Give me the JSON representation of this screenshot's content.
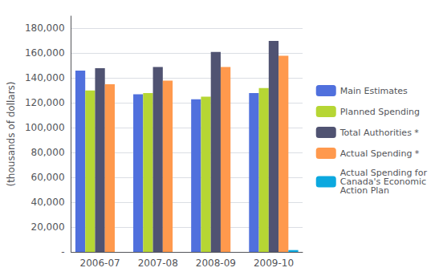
{
  "chart_data": {
    "type": "bar",
    "categories": [
      "2006-07",
      "2007-08",
      "2008-09",
      "2009-10"
    ],
    "series": [
      {
        "name": "Main Estimates",
        "values": [
          146000,
          127000,
          123000,
          128000
        ]
      },
      {
        "name": "Planned Spending",
        "values": [
          130000,
          128000,
          125000,
          132000
        ]
      },
      {
        "name": "Total Authorities *",
        "values": [
          148000,
          149000,
          161000,
          170000
        ]
      },
      {
        "name": "Actual Spending *",
        "values": [
          135000,
          138000,
          149000,
          158000
        ]
      },
      {
        "name": "Actual Spending for\nCanada's Economic\nAction Plan",
        "values": [
          0,
          0,
          0,
          1500
        ]
      }
    ],
    "ylabel": "(thousands of dollars)",
    "ylim": [
      0,
      190000
    ],
    "yticks": [
      {
        "value": 0,
        "label": "-"
      },
      {
        "value": 20000,
        "label": "20,000"
      },
      {
        "value": 40000,
        "label": "40,000"
      },
      {
        "value": 60000,
        "label": "60,000"
      },
      {
        "value": 80000,
        "label": "80,000"
      },
      {
        "value": 100000,
        "label": "100,000"
      },
      {
        "value": 120000,
        "label": "120,000"
      },
      {
        "value": 140000,
        "label": "140,000"
      },
      {
        "value": 160000,
        "label": "160,000"
      },
      {
        "value": 180000,
        "label": "180,000"
      }
    ],
    "grid": true,
    "legend": "right"
  }
}
